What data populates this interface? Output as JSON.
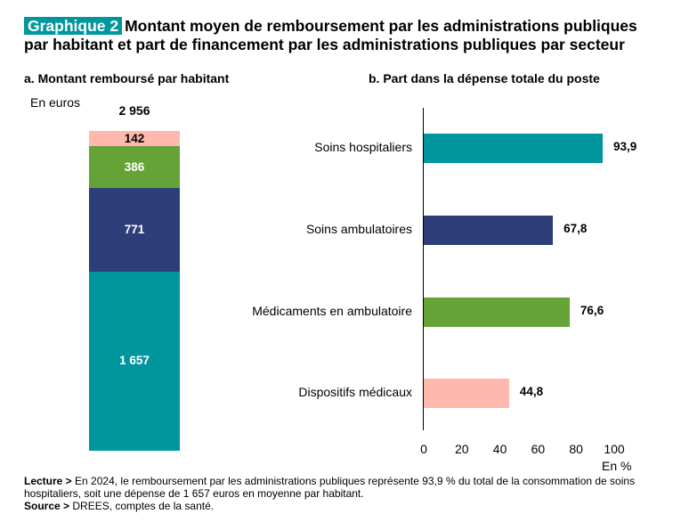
{
  "header": {
    "badge": "Graphique 2",
    "title": "Montant moyen de remboursement par les administrations publiques par habitant et part de financement par les administrations publiques par secteur"
  },
  "panel_a": {
    "title": "a. Montant remboursé par habitant",
    "unit": "En euros"
  },
  "panel_b": {
    "title": "b. Part dans la dépense totale du poste",
    "xaxis_title": "En %"
  },
  "colors": {
    "soins_hospitaliers": "#00969d",
    "soins_ambulatoires": "#2e3e78",
    "medicaments": "#66a336",
    "dispositifs": "#ffb8ad",
    "badge": "#00969d"
  },
  "chart_data": [
    {
      "type": "bar",
      "stacked": true,
      "title": "a. Montant remboursé par habitant",
      "ylabel": "En euros",
      "total_label": "2 956",
      "total": 2956,
      "segments": [
        {
          "category": "Soins hospitaliers",
          "value": 1657,
          "label": "1 657",
          "color": "#00969d"
        },
        {
          "category": "Soins ambulatoires",
          "value": 771,
          "label": "771",
          "color": "#2e3e78"
        },
        {
          "category": "Médicaments en ambulatoire",
          "value": 386,
          "label": "386",
          "color": "#66a336"
        },
        {
          "category": "Dispositifs médicaux",
          "value": 142,
          "label": "142",
          "color": "#ffb8ad"
        }
      ]
    },
    {
      "type": "bar",
      "orientation": "horizontal",
      "title": "b. Part dans la dépense totale du poste",
      "xlabel": "En %",
      "xlim": [
        0,
        100
      ],
      "xticks": [
        "0",
        "20",
        "40",
        "60",
        "80",
        "100"
      ],
      "categories": [
        "Soins hospitaliers",
        "Soins ambulatoires",
        "Médicaments en ambulatoire",
        "Dispositifs médicaux"
      ],
      "values": [
        93.9,
        67.8,
        76.6,
        44.8
      ],
      "value_labels": [
        "93,9",
        "67,8",
        "76,6",
        "44,8"
      ],
      "colors": [
        "#00969d",
        "#2e3e78",
        "#66a336",
        "#ffb8ad"
      ]
    }
  ],
  "footer": {
    "lecture_label": "Lecture >",
    "lecture_text": " En 2024, le remboursement par les administrations publiques représente 93,9 % du total de la consommation de soins hospitaliers, soit une dépense de 1 657 euros en moyenne par habitant.",
    "source_label": "Source >",
    "source_text": " DREES, comptes de la santé."
  }
}
